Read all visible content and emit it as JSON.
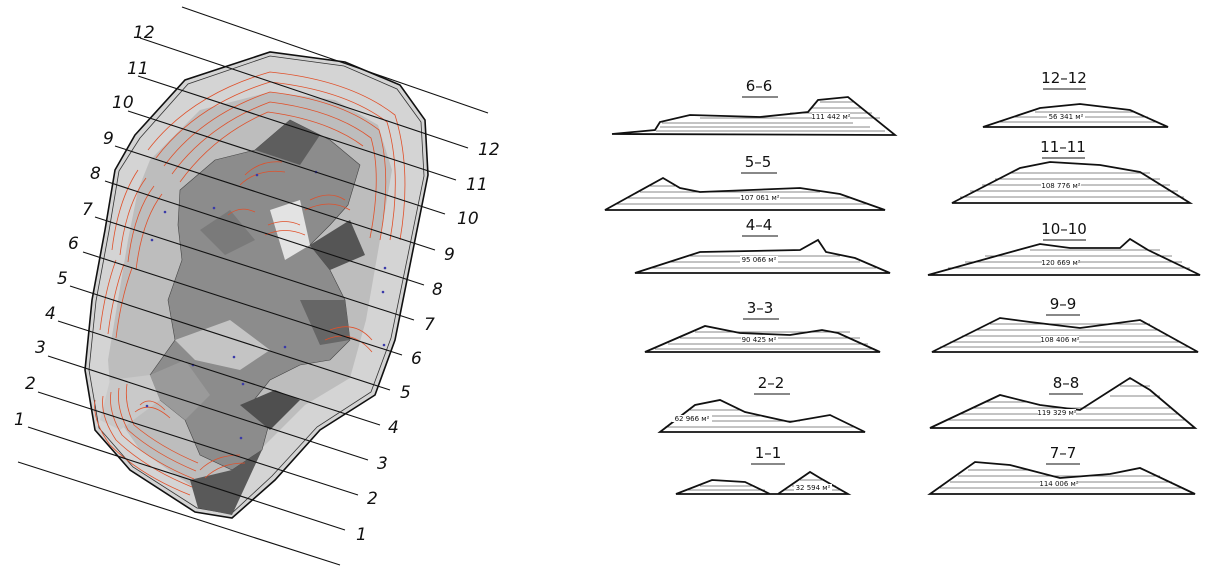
{
  "plan": {
    "cut_labels": [
      "1",
      "2",
      "3",
      "4",
      "5",
      "6",
      "7",
      "8",
      "9",
      "10",
      "11",
      "12"
    ]
  },
  "sections": [
    {
      "title": "6–6",
      "area": "111 442 м²"
    },
    {
      "title": "5–5",
      "area": "107 061 м²"
    },
    {
      "title": "4–4",
      "area": "95 066 м²"
    },
    {
      "title": "3–3",
      "area": "90 425 м²"
    },
    {
      "title": "2–2",
      "area": "62 966 м²"
    },
    {
      "title": "1–1",
      "area": "32 594 м²"
    },
    {
      "title": "12–12",
      "area": "56 341 м²"
    },
    {
      "title": "11–11",
      "area": "108 776 м²"
    },
    {
      "title": "10–10",
      "area": "120 669 м²"
    },
    {
      "title": "9–9",
      "area": "108 406 м²"
    },
    {
      "title": "8–8",
      "area": "119 329 м²"
    },
    {
      "title": "7–7",
      "area": "114 006 м²"
    }
  ],
  "colors": {
    "contour": "#e0502a",
    "outline": "#111111",
    "surface_light": "#d9d9d9",
    "surface_mid": "#a8a8a8",
    "surface_dark": "#6e6e6e",
    "marker": "#3a3aa8"
  }
}
